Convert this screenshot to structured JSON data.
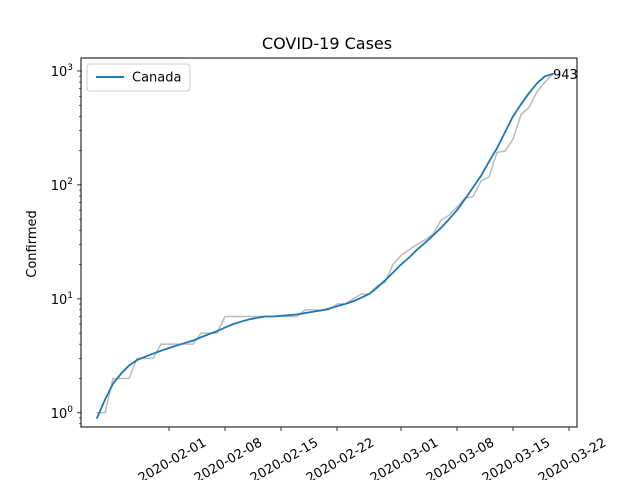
{
  "chart_data": {
    "type": "line",
    "title": "COVID-19 Cases",
    "xlabel": "",
    "ylabel": "Confirmed",
    "yscale": "log",
    "ylim": [
      0.75,
      1300
    ],
    "xlim": [
      "2020-01-21",
      "2020-03-23"
    ],
    "x_ticks": [
      "2020-02-01",
      "2020-02-08",
      "2020-02-15",
      "2020-02-22",
      "2020-03-01",
      "2020-03-08",
      "2020-03-15",
      "2020-03-22"
    ],
    "y_ticks": [
      1,
      10,
      100,
      1000
    ],
    "y_tick_labels": [
      {
        "base": "10",
        "exp": "0"
      },
      {
        "base": "10",
        "exp": "1"
      },
      {
        "base": "10",
        "exp": "2"
      },
      {
        "base": "10",
        "exp": "3"
      }
    ],
    "legend": {
      "position": "top-left"
    },
    "grid": false,
    "annotation": {
      "text": "943",
      "x": "2020-03-20",
      "y": 943
    },
    "series": [
      {
        "name": "Canada",
        "style": "smoothed",
        "color": "#1f77b4",
        "points": [
          [
            "2020-01-23",
            0.9
          ],
          [
            "2020-01-24",
            1.3
          ],
          [
            "2020-01-25",
            1.8
          ],
          [
            "2020-01-26",
            2.2
          ],
          [
            "2020-01-27",
            2.6
          ],
          [
            "2020-01-28",
            2.9
          ],
          [
            "2020-01-29",
            3.1
          ],
          [
            "2020-01-30",
            3.3
          ],
          [
            "2020-01-31",
            3.5
          ],
          [
            "2020-02-01",
            3.7
          ],
          [
            "2020-02-02",
            3.9
          ],
          [
            "2020-02-03",
            4.1
          ],
          [
            "2020-02-04",
            4.3
          ],
          [
            "2020-02-05",
            4.6
          ],
          [
            "2020-02-06",
            4.9
          ],
          [
            "2020-02-07",
            5.2
          ],
          [
            "2020-02-08",
            5.6
          ],
          [
            "2020-02-09",
            6.0
          ],
          [
            "2020-02-10",
            6.3
          ],
          [
            "2020-02-11",
            6.6
          ],
          [
            "2020-02-12",
            6.8
          ],
          [
            "2020-02-13",
            7.0
          ],
          [
            "2020-02-14",
            7.0
          ],
          [
            "2020-02-15",
            7.1
          ],
          [
            "2020-02-16",
            7.2
          ],
          [
            "2020-02-17",
            7.3
          ],
          [
            "2020-02-18",
            7.5
          ],
          [
            "2020-02-19",
            7.7
          ],
          [
            "2020-02-20",
            7.9
          ],
          [
            "2020-02-21",
            8.2
          ],
          [
            "2020-02-22",
            8.6
          ],
          [
            "2020-02-23",
            9.0
          ],
          [
            "2020-02-24",
            9.5
          ],
          [
            "2020-02-25",
            10.2
          ],
          [
            "2020-02-26",
            11.0
          ],
          [
            "2020-02-27",
            12.5
          ],
          [
            "2020-02-28",
            14.5
          ],
          [
            "2020-02-29",
            17.0
          ],
          [
            "2020-03-01",
            20.0
          ],
          [
            "2020-03-02",
            23.0
          ],
          [
            "2020-03-03",
            27.0
          ],
          [
            "2020-03-04",
            31.0
          ],
          [
            "2020-03-05",
            36.0
          ],
          [
            "2020-03-06",
            42.0
          ],
          [
            "2020-03-07",
            50.0
          ],
          [
            "2020-03-08",
            60.0
          ],
          [
            "2020-03-09",
            75.0
          ],
          [
            "2020-03-10",
            95.0
          ],
          [
            "2020-03-11",
            120.0
          ],
          [
            "2020-03-12",
            160.0
          ],
          [
            "2020-03-13",
            210.0
          ],
          [
            "2020-03-14",
            290.0
          ],
          [
            "2020-03-15",
            400.0
          ],
          [
            "2020-03-16",
            510.0
          ],
          [
            "2020-03-17",
            640.0
          ],
          [
            "2020-03-18",
            780.0
          ],
          [
            "2020-03-19",
            900.0
          ],
          [
            "2020-03-20",
            943.0
          ]
        ]
      },
      {
        "style": "raw",
        "color": "#bbbbbb",
        "points": [
          [
            "2020-01-23",
            1
          ],
          [
            "2020-01-24",
            1
          ],
          [
            "2020-01-25",
            2
          ],
          [
            "2020-01-26",
            2
          ],
          [
            "2020-01-27",
            2
          ],
          [
            "2020-01-28",
            3
          ],
          [
            "2020-01-29",
            3
          ],
          [
            "2020-01-30",
            3
          ],
          [
            "2020-01-31",
            4
          ],
          [
            "2020-02-01",
            4
          ],
          [
            "2020-02-02",
            4
          ],
          [
            "2020-02-03",
            4
          ],
          [
            "2020-02-04",
            4
          ],
          [
            "2020-02-05",
            5
          ],
          [
            "2020-02-06",
            5
          ],
          [
            "2020-02-07",
            5
          ],
          [
            "2020-02-08",
            7
          ],
          [
            "2020-02-09",
            7
          ],
          [
            "2020-02-10",
            7
          ],
          [
            "2020-02-11",
            7
          ],
          [
            "2020-02-12",
            7
          ],
          [
            "2020-02-13",
            7
          ],
          [
            "2020-02-14",
            7
          ],
          [
            "2020-02-15",
            7
          ],
          [
            "2020-02-16",
            7
          ],
          [
            "2020-02-17",
            7
          ],
          [
            "2020-02-18",
            8
          ],
          [
            "2020-02-19",
            8
          ],
          [
            "2020-02-20",
            8
          ],
          [
            "2020-02-21",
            8
          ],
          [
            "2020-02-22",
            9
          ],
          [
            "2020-02-23",
            9
          ],
          [
            "2020-02-24",
            10
          ],
          [
            "2020-02-25",
            11
          ],
          [
            "2020-02-26",
            11
          ],
          [
            "2020-02-27",
            13
          ],
          [
            "2020-02-28",
            14
          ],
          [
            "2020-02-29",
            20
          ],
          [
            "2020-03-01",
            24
          ],
          [
            "2020-03-02",
            27
          ],
          [
            "2020-03-03",
            30
          ],
          [
            "2020-03-04",
            33
          ],
          [
            "2020-03-05",
            37
          ],
          [
            "2020-03-06",
            49
          ],
          [
            "2020-03-07",
            54
          ],
          [
            "2020-03-08",
            64
          ],
          [
            "2020-03-09",
            77
          ],
          [
            "2020-03-10",
            79
          ],
          [
            "2020-03-11",
            108
          ],
          [
            "2020-03-12",
            117
          ],
          [
            "2020-03-13",
            193
          ],
          [
            "2020-03-14",
            198
          ],
          [
            "2020-03-15",
            252
          ],
          [
            "2020-03-16",
            415
          ],
          [
            "2020-03-17",
            478
          ],
          [
            "2020-03-18",
            657
          ],
          [
            "2020-03-19",
            800
          ],
          [
            "2020-03-20",
            943
          ]
        ]
      }
    ]
  }
}
